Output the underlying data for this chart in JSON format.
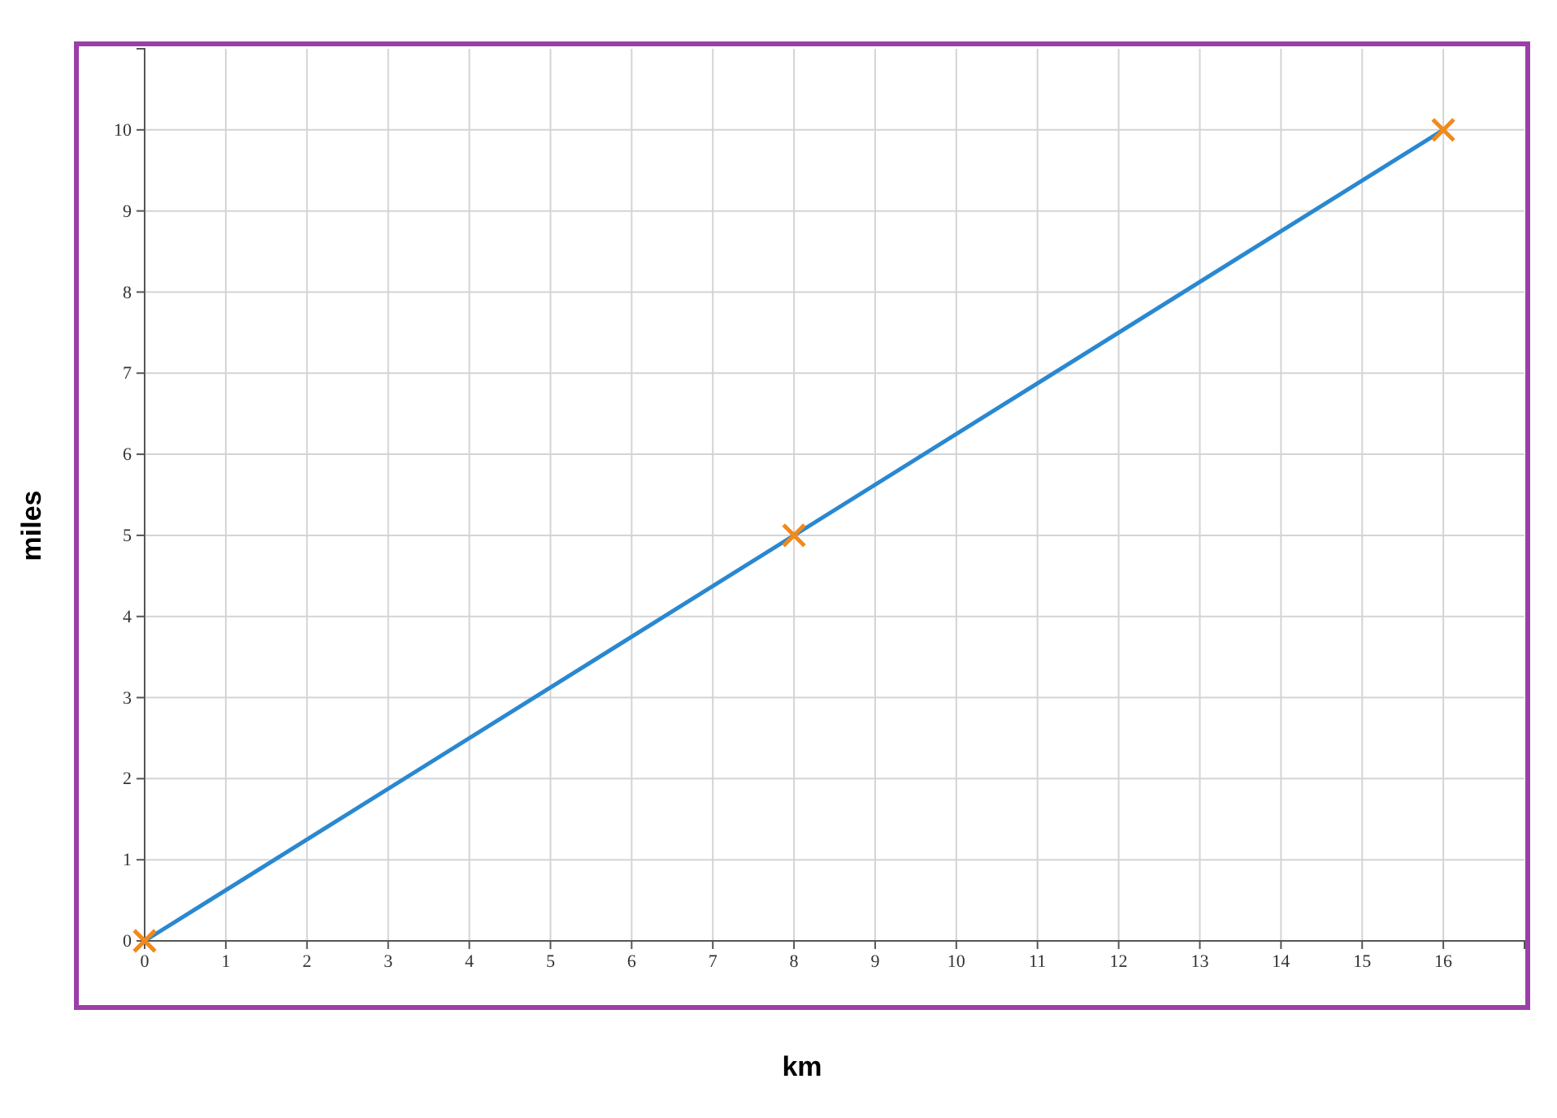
{
  "chart_data": {
    "type": "line",
    "xlabel": "km",
    "ylabel": "miles",
    "xlim": [
      0,
      17
    ],
    "ylim": [
      0,
      11
    ],
    "xticks": [
      0,
      1,
      2,
      3,
      4,
      5,
      6,
      7,
      8,
      9,
      10,
      11,
      12,
      13,
      14,
      15,
      16
    ],
    "yticks": [
      0,
      1,
      2,
      3,
      4,
      5,
      6,
      7,
      8,
      9,
      10
    ],
    "grid": true,
    "series": [
      {
        "color": "#2a88d0",
        "x": [
          0,
          16
        ],
        "values": [
          0,
          10
        ],
        "marker": "none"
      },
      {
        "type": "scatter",
        "color": "#f08a1c",
        "x": [
          0,
          8,
          16
        ],
        "values": [
          0,
          5,
          10
        ],
        "marker": "cross"
      }
    ]
  }
}
